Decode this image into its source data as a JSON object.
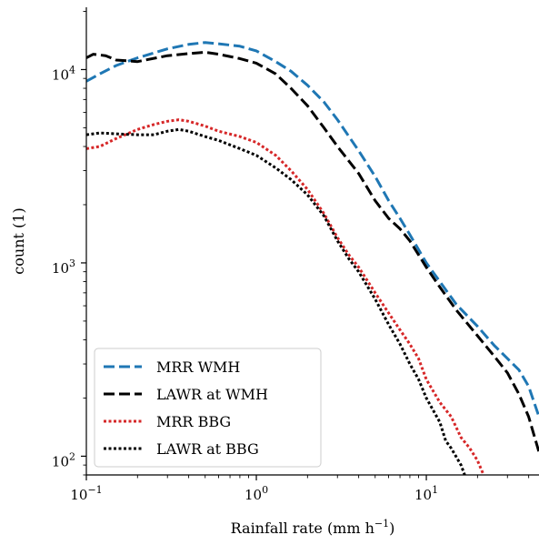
{
  "chart_data": {
    "type": "line",
    "xlabel": "Rainfall rate (mm h",
    "xlabel_sup": "−1",
    "xlabel_close": ")",
    "ylabel": "count (1)",
    "xscale": "log",
    "yscale": "log",
    "xlim": [
      0.1,
      46
    ],
    "ylim": [
      80,
      21000
    ],
    "x_ticks": [
      {
        "value": 0.1,
        "base": "10",
        "exp": "−1"
      },
      {
        "value": 1,
        "base": "10",
        "exp": "0"
      },
      {
        "value": 10,
        "base": "10",
        "exp": "1"
      }
    ],
    "y_ticks": [
      {
        "value": 100,
        "base": "10",
        "exp": "2"
      },
      {
        "value": 1000,
        "base": "10",
        "exp": "3"
      },
      {
        "value": 10000,
        "base": "10",
        "exp": "4"
      }
    ],
    "grid": false,
    "legend_position": "bottom-left",
    "series": [
      {
        "name": "MRR WMH",
        "color": "#1f77b4",
        "style": "dashed",
        "x": [
          0.1,
          0.12,
          0.15,
          0.2,
          0.3,
          0.4,
          0.5,
          0.6,
          0.8,
          1.0,
          1.3,
          1.6,
          2.0,
          2.5,
          3.0,
          4.0,
          5.0,
          6.0,
          7.0,
          8.0,
          10.0,
          12.0,
          15.0,
          20.0,
          25.0,
          30.0,
          35.0,
          40.0,
          46.0
        ],
        "y": [
          8700,
          9500,
          10500,
          11500,
          12800,
          13500,
          13800,
          13600,
          13200,
          12500,
          11000,
          9800,
          8300,
          6800,
          5500,
          3800,
          2800,
          2100,
          1700,
          1400,
          1000,
          800,
          610,
          470,
          375,
          320,
          280,
          230,
          160
        ]
      },
      {
        "name": "LAWR at WMH",
        "color": "#000000",
        "style": "dashed",
        "x": [
          0.1,
          0.11,
          0.13,
          0.15,
          0.2,
          0.3,
          0.4,
          0.5,
          0.6,
          0.8,
          1.0,
          1.3,
          1.6,
          2.0,
          2.5,
          3.0,
          4.0,
          5.0,
          6.0,
          7.0,
          8.0,
          10.0,
          12.0,
          15.0,
          20.0,
          25.0,
          30.0,
          35.0,
          40.0,
          46.0
        ],
        "y": [
          11500,
          12000,
          11800,
          11200,
          11000,
          11800,
          12100,
          12300,
          12000,
          11400,
          10800,
          9500,
          8000,
          6500,
          5000,
          4000,
          2900,
          2100,
          1700,
          1500,
          1300,
          950,
          750,
          570,
          420,
          330,
          270,
          210,
          160,
          105
        ]
      },
      {
        "name": "MRR BBG",
        "color": "#d62728",
        "style": "dotted",
        "x": [
          0.1,
          0.12,
          0.15,
          0.2,
          0.25,
          0.3,
          0.35,
          0.4,
          0.5,
          0.6,
          0.8,
          1.0,
          1.3,
          1.6,
          2.0,
          2.5,
          3.0,
          3.5,
          4.0,
          5.0,
          6.0,
          7.0,
          8.0,
          9.0,
          10.0,
          12.0,
          14.0,
          16.0,
          18.0,
          20.0,
          22.0
        ],
        "y": [
          3900,
          4000,
          4400,
          4900,
          5200,
          5400,
          5500,
          5400,
          5100,
          4800,
          4500,
          4200,
          3600,
          3000,
          2400,
          1800,
          1350,
          1100,
          950,
          700,
          550,
          450,
          380,
          320,
          250,
          190,
          160,
          125,
          110,
          95,
          78
        ]
      },
      {
        "name": "LAWR at BBG",
        "color": "#000000",
        "style": "dotted",
        "x": [
          0.1,
          0.12,
          0.15,
          0.2,
          0.25,
          0.3,
          0.35,
          0.4,
          0.5,
          0.6,
          0.8,
          1.0,
          1.3,
          1.6,
          2.0,
          2.5,
          3.0,
          3.5,
          4.0,
          5.0,
          6.0,
          7.0,
          8.0,
          9.0,
          10.0,
          12.0,
          13.0,
          14.0,
          16.0,
          17.0
        ],
        "y": [
          4600,
          4700,
          4650,
          4600,
          4600,
          4800,
          4900,
          4800,
          4500,
          4300,
          3900,
          3600,
          3100,
          2700,
          2250,
          1750,
          1300,
          1050,
          900,
          650,
          480,
          380,
          300,
          250,
          200,
          150,
          120,
          110,
          90,
          78
        ]
      }
    ]
  }
}
